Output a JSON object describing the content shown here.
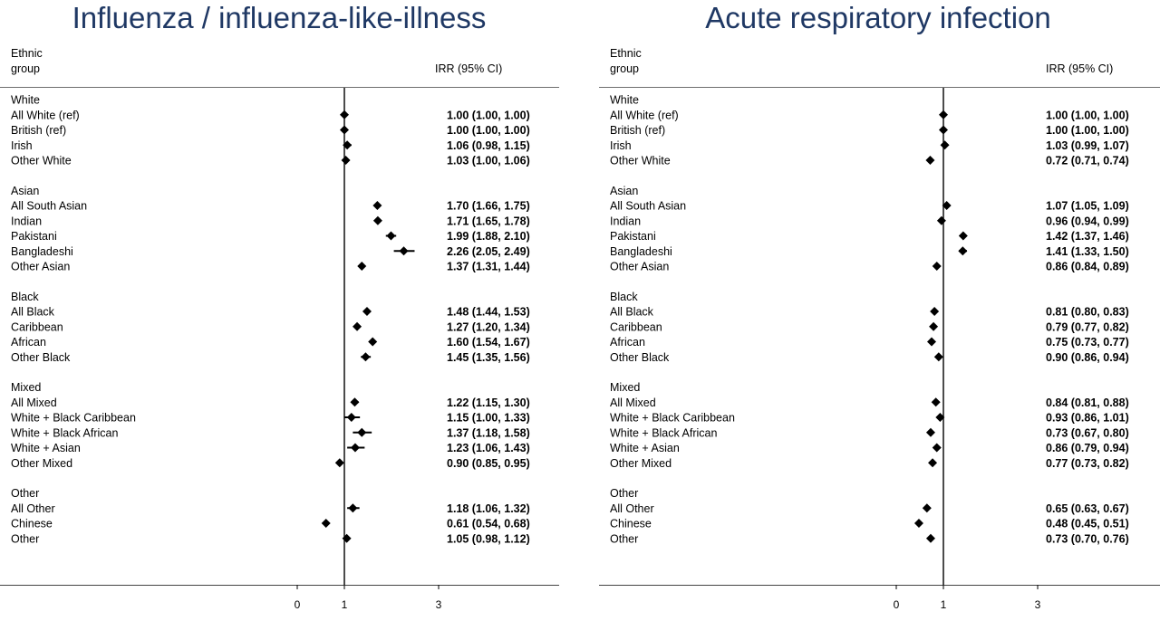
{
  "chart_data": [
    {
      "type": "forest",
      "title": "Influenza / influenza-like-illness",
      "header_label": "Ethnic\ngroup",
      "header_estimate": "IRR (95% CI)",
      "reference_line": 1,
      "x_ticks": [
        0,
        1,
        3
      ],
      "xlim": [
        -1,
        4.55
      ],
      "groups": [
        {
          "name": "White",
          "rows": [
            {
              "label": "All White (ref)",
              "est": 1.0,
              "lo": 1.0,
              "hi": 1.0,
              "text": "1.00 (1.00, 1.00)"
            },
            {
              "label": "British (ref)",
              "est": 1.0,
              "lo": 1.0,
              "hi": 1.0,
              "text": "1.00 (1.00, 1.00)"
            },
            {
              "label": "Irish",
              "est": 1.06,
              "lo": 0.98,
              "hi": 1.15,
              "text": "1.06 (0.98, 1.15)"
            },
            {
              "label": "Other White",
              "est": 1.03,
              "lo": 1.0,
              "hi": 1.06,
              "text": "1.03 (1.00, 1.06)"
            }
          ]
        },
        {
          "name": "Asian",
          "rows": [
            {
              "label": "All South Asian",
              "est": 1.7,
              "lo": 1.66,
              "hi": 1.75,
              "text": "1.70 (1.66, 1.75)"
            },
            {
              "label": "Indian",
              "est": 1.71,
              "lo": 1.65,
              "hi": 1.78,
              "text": "1.71 (1.65, 1.78)"
            },
            {
              "label": "Pakistani",
              "est": 1.99,
              "lo": 1.88,
              "hi": 2.1,
              "text": "1.99 (1.88, 2.10)"
            },
            {
              "label": "Bangladeshi",
              "est": 2.26,
              "lo": 2.05,
              "hi": 2.49,
              "text": "2.26 (2.05, 2.49)"
            },
            {
              "label": "Other Asian",
              "est": 1.37,
              "lo": 1.31,
              "hi": 1.44,
              "text": "1.37 (1.31, 1.44)"
            }
          ]
        },
        {
          "name": "Black",
          "rows": [
            {
              "label": "All Black",
              "est": 1.48,
              "lo": 1.44,
              "hi": 1.53,
              "text": "1.48 (1.44, 1.53)"
            },
            {
              "label": "Caribbean",
              "est": 1.27,
              "lo": 1.2,
              "hi": 1.34,
              "text": "1.27 (1.20, 1.34)"
            },
            {
              "label": "African",
              "est": 1.6,
              "lo": 1.54,
              "hi": 1.67,
              "text": "1.60 (1.54, 1.67)"
            },
            {
              "label": "Other Black",
              "est": 1.45,
              "lo": 1.35,
              "hi": 1.56,
              "text": "1.45 (1.35, 1.56)"
            }
          ]
        },
        {
          "name": "Mixed",
          "rows": [
            {
              "label": "All Mixed",
              "est": 1.22,
              "lo": 1.15,
              "hi": 1.3,
              "text": "1.22 (1.15, 1.30)"
            },
            {
              "label": "White + Black Caribbean",
              "est": 1.15,
              "lo": 1.0,
              "hi": 1.33,
              "text": "1.15 (1.00, 1.33)"
            },
            {
              "label": "White + Black African",
              "est": 1.37,
              "lo": 1.18,
              "hi": 1.58,
              "text": "1.37 (1.18, 1.58)"
            },
            {
              "label": "White + Asian",
              "est": 1.23,
              "lo": 1.06,
              "hi": 1.43,
              "text": "1.23 (1.06, 1.43)"
            },
            {
              "label": "Other Mixed",
              "est": 0.9,
              "lo": 0.85,
              "hi": 0.95,
              "text": "0.90 (0.85, 0.95)"
            }
          ]
        },
        {
          "name": "Other",
          "rows": [
            {
              "label": "All Other",
              "est": 1.18,
              "lo": 1.06,
              "hi": 1.32,
              "text": "1.18 (1.06, 1.32)"
            },
            {
              "label": "Chinese",
              "est": 0.61,
              "lo": 0.54,
              "hi": 0.68,
              "text": "0.61 (0.54, 0.68)"
            },
            {
              "label": "Other",
              "est": 1.05,
              "lo": 0.98,
              "hi": 1.12,
              "text": "1.05 (0.98, 1.12)"
            }
          ]
        }
      ]
    },
    {
      "type": "forest",
      "title": "Acute respiratory infection",
      "header_label": "Ethnic\ngroup",
      "header_estimate": "IRR (95% CI)",
      "reference_line": 1,
      "x_ticks": [
        0,
        1,
        3
      ],
      "xlim": [
        -1,
        4.55
      ],
      "groups": [
        {
          "name": "White",
          "rows": [
            {
              "label": "All White (ref)",
              "est": 1.0,
              "lo": 1.0,
              "hi": 1.0,
              "text": "1.00 (1.00, 1.00)"
            },
            {
              "label": "British (ref)",
              "est": 1.0,
              "lo": 1.0,
              "hi": 1.0,
              "text": "1.00 (1.00, 1.00)"
            },
            {
              "label": "Irish",
              "est": 1.03,
              "lo": 0.99,
              "hi": 1.07,
              "text": "1.03 (0.99, 1.07)"
            },
            {
              "label": "Other White",
              "est": 0.72,
              "lo": 0.71,
              "hi": 0.74,
              "text": "0.72 (0.71, 0.74)"
            }
          ]
        },
        {
          "name": "Asian",
          "rows": [
            {
              "label": "All South Asian",
              "est": 1.07,
              "lo": 1.05,
              "hi": 1.09,
              "text": "1.07 (1.05, 1.09)"
            },
            {
              "label": "Indian",
              "est": 0.96,
              "lo": 0.94,
              "hi": 0.99,
              "text": "0.96 (0.94, 0.99)"
            },
            {
              "label": "Pakistani",
              "est": 1.42,
              "lo": 1.37,
              "hi": 1.46,
              "text": "1.42 (1.37, 1.46)"
            },
            {
              "label": "Bangladeshi",
              "est": 1.41,
              "lo": 1.33,
              "hi": 1.5,
              "text": "1.41 (1.33, 1.50)"
            },
            {
              "label": "Other Asian",
              "est": 0.86,
              "lo": 0.84,
              "hi": 0.89,
              "text": "0.86 (0.84, 0.89)"
            }
          ]
        },
        {
          "name": "Black",
          "rows": [
            {
              "label": "All Black",
              "est": 0.81,
              "lo": 0.8,
              "hi": 0.83,
              "text": "0.81 (0.80, 0.83)"
            },
            {
              "label": "Caribbean",
              "est": 0.79,
              "lo": 0.77,
              "hi": 0.82,
              "text": "0.79 (0.77, 0.82)"
            },
            {
              "label": "African",
              "est": 0.75,
              "lo": 0.73,
              "hi": 0.77,
              "text": "0.75 (0.73, 0.77)"
            },
            {
              "label": "Other Black",
              "est": 0.9,
              "lo": 0.86,
              "hi": 0.94,
              "text": "0.90 (0.86, 0.94)"
            }
          ]
        },
        {
          "name": "Mixed",
          "rows": [
            {
              "label": "All Mixed",
              "est": 0.84,
              "lo": 0.81,
              "hi": 0.88,
              "text": "0.84 (0.81, 0.88)"
            },
            {
              "label": "White + Black Caribbean",
              "est": 0.93,
              "lo": 0.86,
              "hi": 1.01,
              "text": "0.93 (0.86, 1.01)"
            },
            {
              "label": "White + Black African",
              "est": 0.73,
              "lo": 0.67,
              "hi": 0.8,
              "text": "0.73 (0.67, 0.80)"
            },
            {
              "label": "White + Asian",
              "est": 0.86,
              "lo": 0.79,
              "hi": 0.94,
              "text": "0.86 (0.79, 0.94)"
            },
            {
              "label": "Other Mixed",
              "est": 0.77,
              "lo": 0.73,
              "hi": 0.82,
              "text": "0.77 (0.73, 0.82)"
            }
          ]
        },
        {
          "name": "Other",
          "rows": [
            {
              "label": "All Other",
              "est": 0.65,
              "lo": 0.63,
              "hi": 0.67,
              "text": "0.65 (0.63, 0.67)"
            },
            {
              "label": "Chinese",
              "est": 0.48,
              "lo": 0.45,
              "hi": 0.51,
              "text": "0.48 (0.45, 0.51)"
            },
            {
              "label": "Other",
              "est": 0.73,
              "lo": 0.7,
              "hi": 0.76,
              "text": "0.73 (0.70, 0.76)"
            }
          ]
        }
      ]
    }
  ]
}
